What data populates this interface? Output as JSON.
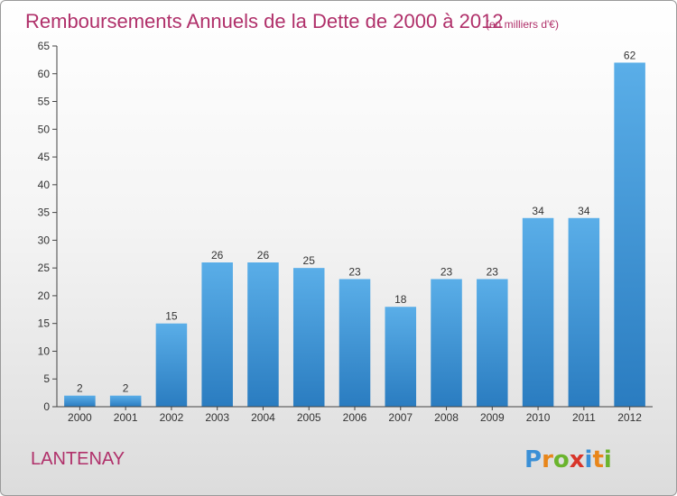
{
  "chart_data": {
    "type": "bar",
    "title": "Remboursements Annuels de la Dette de 2000 à 2012",
    "subtitle": "(en milliers d'€)",
    "xlabel": "",
    "ylabel": "",
    "categories": [
      "2000",
      "2001",
      "2002",
      "2003",
      "2004",
      "2005",
      "2006",
      "2007",
      "2008",
      "2009",
      "2010",
      "2011",
      "2012"
    ],
    "values": [
      2,
      2,
      15,
      26,
      26,
      25,
      23,
      18,
      23,
      23,
      34,
      34,
      62
    ],
    "ylim": [
      0,
      65
    ],
    "yticks": [
      0,
      5,
      10,
      15,
      20,
      25,
      30,
      35,
      40,
      45,
      50,
      55,
      60,
      65
    ],
    "grid": false,
    "bar_color_top": "#5aaee8",
    "bar_color_bottom": "#2a7cc0",
    "title_color": "#b0306a"
  },
  "commune": "LANTENAY",
  "logo": {
    "letters": [
      "P",
      "r",
      "o",
      "x",
      "i",
      "t",
      "i"
    ],
    "colors": [
      "#3a8fd6",
      "#e8861a",
      "#6ab42d",
      "#d8352a",
      "#3a8fd6",
      "#e8861a",
      "#6ab42d"
    ]
  }
}
